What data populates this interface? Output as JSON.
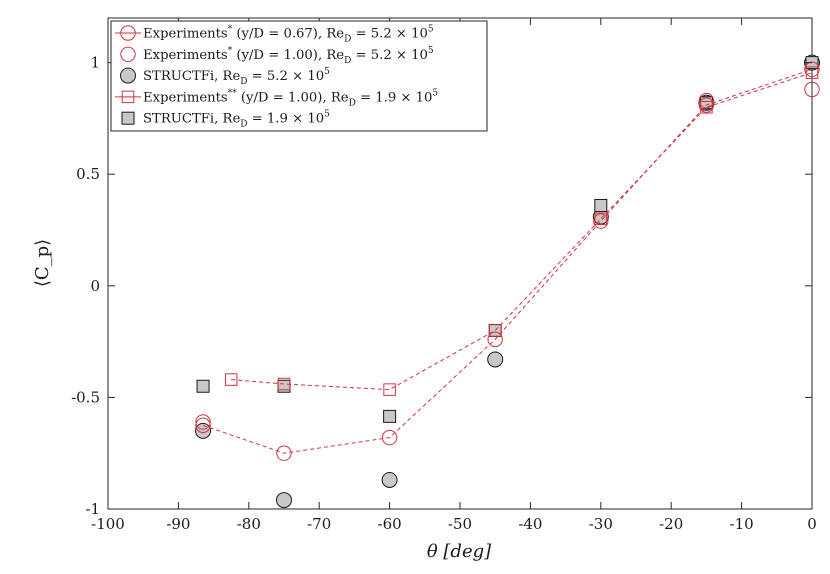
{
  "chart_data": {
    "type": "scatter",
    "xlabel": "θ [deg]",
    "ylabel": "⟨C_p⟩",
    "xlim": [
      -100,
      0
    ],
    "ylim": [
      -1,
      1.2
    ],
    "xticks": [
      -100,
      -90,
      -80,
      -70,
      -60,
      -50,
      -40,
      -30,
      -20,
      -10,
      0
    ],
    "yticks": [
      -1,
      -0.5,
      0,
      0.5,
      1
    ],
    "ytick_labels": [
      "-1",
      "-0.5",
      "0",
      "0.5",
      "1"
    ],
    "grid": false,
    "legend_position": "top-left",
    "series": [
      {
        "name": "Experiments* (y/D = 0.67), Re_D = 5.2 × 10^5",
        "marker": "circle-open",
        "line": "dashed",
        "color": "#d2333f",
        "x": [
          -86.5,
          -75,
          -60,
          -45,
          -30,
          -15,
          0
        ],
        "y": [
          -0.625,
          -0.75,
          -0.68,
          -0.24,
          0.29,
          0.81,
          0.97
        ]
      },
      {
        "name": "Experiments* (y/D = 1.00), Re_D = 5.2 × 10^5",
        "marker": "circle-open",
        "line": "none",
        "color": "#d2333f",
        "x": [
          -86.5,
          -15,
          0
        ],
        "y": [
          -0.61,
          0.83,
          0.88
        ]
      },
      {
        "name": "STRUCTFi, Re_D = 5.2 × 10^5",
        "marker": "circle-filled",
        "line": "none",
        "color": "#c8c8c8",
        "x": [
          -86.5,
          -75,
          -60,
          -45,
          -30,
          -15,
          0
        ],
        "y": [
          -0.65,
          -0.96,
          -0.87,
          -0.33,
          0.31,
          0.82,
          1.0
        ]
      },
      {
        "name": "Experiments** (y/D = 1.00), Re_D = 1.9 × 10^5",
        "marker": "square-open",
        "line": "dashed",
        "color": "#d2333f",
        "x": [
          -82.5,
          -75,
          -60,
          -45,
          -30,
          -15,
          0
        ],
        "y": [
          -0.42,
          -0.44,
          -0.465,
          -0.2,
          0.3,
          0.8,
          0.955
        ]
      },
      {
        "name": "STRUCTFi, Re_D = 1.9 × 10^5",
        "marker": "square-filled",
        "line": "none",
        "color": "#c8c8c8",
        "x": [
          -86.5,
          -75,
          -60,
          -45,
          -30,
          -15,
          0
        ],
        "y": [
          -0.45,
          -0.45,
          -0.585,
          -0.2,
          0.36,
          0.82,
          1.0
        ]
      }
    ],
    "legend": [
      {
        "pre": "Experiments",
        "sup1": "*",
        "mid": " (y/D = 0.67), Re",
        "sub": "D",
        "post": " = 5.2 × 10",
        "sup2": "5"
      },
      {
        "pre": "Experiments",
        "sup1": "*",
        "mid": " (y/D = 1.00), Re",
        "sub": "D",
        "post": " = 5.2 × 10",
        "sup2": "5"
      },
      {
        "pre": "STRUCTFi",
        "sup1": "",
        "mid": ", Re",
        "sub": "D",
        "post": " = 5.2 × 10",
        "sup2": "5"
      },
      {
        "pre": "Experiments",
        "sup1": "**",
        "mid": " (y/D = 1.00), Re",
        "sub": "D",
        "post": " = 1.9 × 10",
        "sup2": "5"
      },
      {
        "pre": "STRUCTFi",
        "sup1": "",
        "mid": ", Re",
        "sub": "D",
        "post": " = 1.9 × 10",
        "sup2": "5"
      }
    ]
  }
}
